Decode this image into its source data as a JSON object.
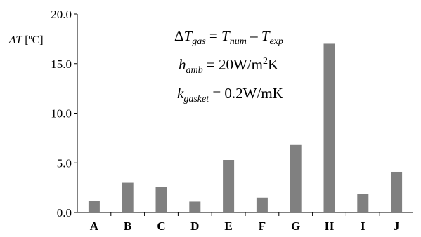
{
  "chart_data": {
    "type": "bar",
    "ylabel_symbol": "ΔT",
    "ylabel_unit": " [ºC]",
    "categories": [
      "A",
      "B",
      "C",
      "D",
      "E",
      "F",
      "G",
      "H",
      "I",
      "J"
    ],
    "values": [
      1.2,
      3.0,
      2.6,
      1.1,
      5.3,
      1.5,
      6.8,
      17.0,
      1.9,
      4.1
    ],
    "ylim": [
      0,
      20
    ],
    "yticks": [
      "0.0",
      "5.0",
      "10.0",
      "15.0",
      "20.0"
    ],
    "bar_color": "#808080",
    "grid": false,
    "annotations": {
      "line1": {
        "delta": "Δ",
        "T": "T",
        "gas": "gas",
        "eq": " = ",
        "T2": "T",
        "num": "num",
        "minus": " – ",
        "T3": "T",
        "exp": "exp"
      },
      "line2": {
        "h": "h",
        "amb": "amb",
        "eq": " = 20W/m",
        "sup": "2",
        "unit": "K"
      },
      "line3": {
        "k": "k",
        "gasket": "gasket",
        "eq": " = 0.2W/mK"
      }
    }
  }
}
